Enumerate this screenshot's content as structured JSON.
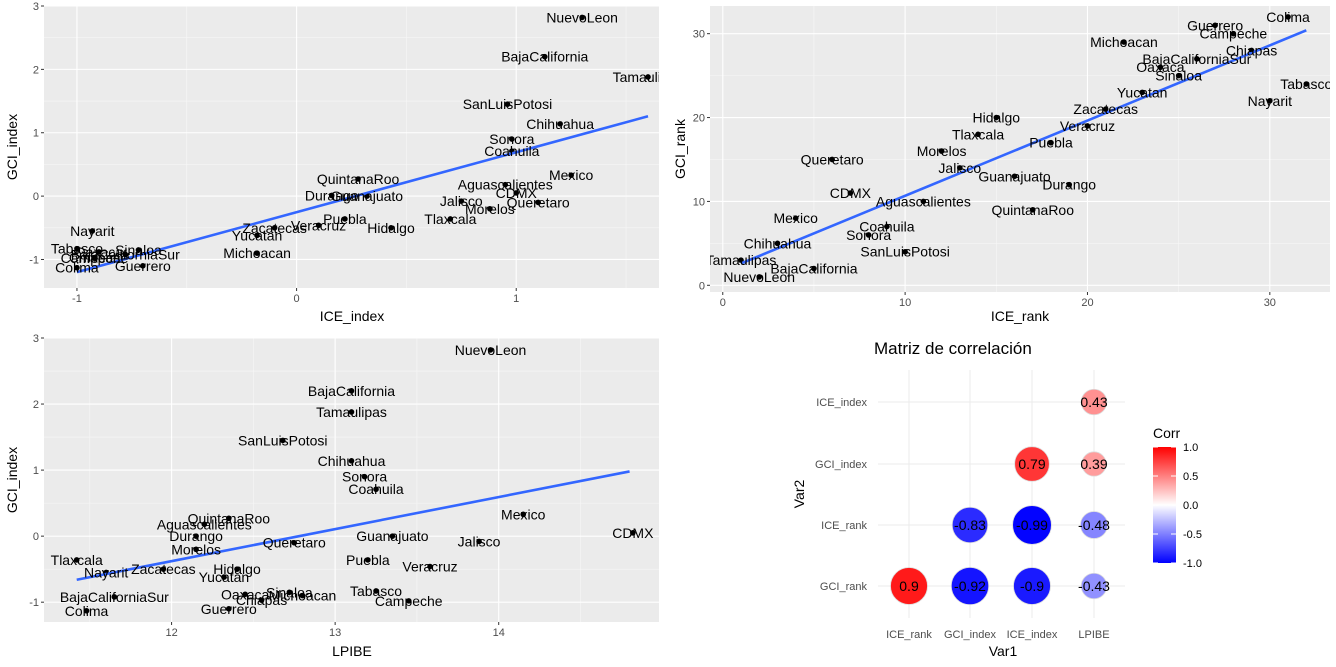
{
  "chart_data": [
    {
      "type": "scatter",
      "title": "",
      "xlabel": "ICE_index",
      "ylabel": "GCI_index",
      "xlim": [
        -1.15,
        1.65
      ],
      "ylim": [
        -1.45,
        3.0
      ],
      "xticks": [
        -1,
        0,
        1
      ],
      "yticks": [
        -1,
        0,
        1,
        2,
        3
      ],
      "grid": true,
      "trend_line": {
        "color": "#3366FF",
        "from": [
          -1.0,
          -1.2
        ],
        "to": [
          1.6,
          1.26
        ]
      },
      "points": [
        {
          "label": "NuevoLeon",
          "x": 1.3,
          "y": 2.82
        },
        {
          "label": "BajaCalifornia",
          "x": 1.13,
          "y": 2.2
        },
        {
          "label": "Tamaulipas",
          "x": 1.6,
          "y": 1.88
        },
        {
          "label": "SanLuisPotosi",
          "x": 0.96,
          "y": 1.45
        },
        {
          "label": "Chihuahua",
          "x": 1.2,
          "y": 1.14
        },
        {
          "label": "Sonora",
          "x": 0.98,
          "y": 0.9
        },
        {
          "label": "Coahuila",
          "x": 0.98,
          "y": 0.71
        },
        {
          "label": "Mexico",
          "x": 1.25,
          "y": 0.33
        },
        {
          "label": "QuintanaRoo",
          "x": 0.28,
          "y": 0.27
        },
        {
          "label": "Aguascalientes",
          "x": 0.95,
          "y": 0.18
        },
        {
          "label": "Durango",
          "x": 0.16,
          "y": 0.01
        },
        {
          "label": "Guanajuato",
          "x": 0.32,
          "y": 0.0
        },
        {
          "label": "CDMX",
          "x": 1.0,
          "y": 0.05
        },
        {
          "label": "Jalisco",
          "x": 0.75,
          "y": -0.08
        },
        {
          "label": "Queretaro",
          "x": 1.1,
          "y": -0.1
        },
        {
          "label": "Morelos",
          "x": 0.88,
          "y": -0.2
        },
        {
          "label": "Puebla",
          "x": 0.22,
          "y": -0.36
        },
        {
          "label": "Tlaxcala",
          "x": 0.7,
          "y": -0.36
        },
        {
          "label": "Zacatecas",
          "x": -0.1,
          "y": -0.5
        },
        {
          "label": "Veracruz",
          "x": 0.1,
          "y": -0.46
        },
        {
          "label": "Hidalgo",
          "x": 0.43,
          "y": -0.5
        },
        {
          "label": "Yucatan",
          "x": -0.18,
          "y": -0.62
        },
        {
          "label": "Nayarit",
          "x": -0.93,
          "y": -0.55
        },
        {
          "label": "Tabasco",
          "x": -1.0,
          "y": -0.83
        },
        {
          "label": "Sinaloa",
          "x": -0.72,
          "y": -0.85
        },
        {
          "label": "Oaxaca",
          "x": -0.9,
          "y": -0.88
        },
        {
          "label": "BajaCaliforniaSur",
          "x": -0.78,
          "y": -0.92
        },
        {
          "label": "Chiapas",
          "x": -0.92,
          "y": -0.97
        },
        {
          "label": "Campeche",
          "x": -0.92,
          "y": -0.98
        },
        {
          "label": "Michoacan",
          "x": -0.18,
          "y": -0.9
        },
        {
          "label": "Colima",
          "x": -1.0,
          "y": -1.13
        },
        {
          "label": "Guerrero",
          "x": -0.7,
          "y": -1.1
        }
      ]
    },
    {
      "type": "scatter",
      "title": "",
      "xlabel": "ICE_rank",
      "ylabel": "GCI_rank",
      "xlim": [
        -0.7,
        33.3
      ],
      "ylim": [
        -0.8,
        33.3
      ],
      "xticks": [
        0,
        10,
        20,
        30
      ],
      "yticks": [
        0,
        10,
        20,
        30
      ],
      "grid": true,
      "trend_line": {
        "color": "#3366FF",
        "from": [
          1,
          2.6
        ],
        "to": [
          32,
          30.4
        ]
      },
      "points": [
        {
          "label": "Colima",
          "x": 31,
          "y": 32
        },
        {
          "label": "Guerrero",
          "x": 27,
          "y": 31
        },
        {
          "label": "Campeche",
          "x": 28,
          "y": 30
        },
        {
          "label": "Michoacan",
          "x": 22,
          "y": 29
        },
        {
          "label": "Chiapas",
          "x": 29,
          "y": 28
        },
        {
          "label": "BajaCaliforniaSur",
          "x": 26,
          "y": 27
        },
        {
          "label": "Oaxaca",
          "x": 24,
          "y": 26
        },
        {
          "label": "Sinaloa",
          "x": 25,
          "y": 25
        },
        {
          "label": "Tabasco",
          "x": 32,
          "y": 24
        },
        {
          "label": "Yucatan",
          "x": 23,
          "y": 23
        },
        {
          "label": "Nayarit",
          "x": 30,
          "y": 22
        },
        {
          "label": "Zacatecas",
          "x": 21,
          "y": 21
        },
        {
          "label": "Hidalgo",
          "x": 15,
          "y": 20
        },
        {
          "label": "Veracruz",
          "x": 20,
          "y": 19
        },
        {
          "label": "Tlaxcala",
          "x": 14,
          "y": 18
        },
        {
          "label": "Puebla",
          "x": 18,
          "y": 17
        },
        {
          "label": "Morelos",
          "x": 12,
          "y": 16
        },
        {
          "label": "Queretaro",
          "x": 6,
          "y": 15
        },
        {
          "label": "Jalisco",
          "x": 13,
          "y": 14
        },
        {
          "label": "Guanajuato",
          "x": 16,
          "y": 13
        },
        {
          "label": "Durango",
          "x": 19,
          "y": 12
        },
        {
          "label": "CDMX",
          "x": 7,
          "y": 11
        },
        {
          "label": "Aguascalientes",
          "x": 11,
          "y": 10
        },
        {
          "label": "QuintanaRoo",
          "x": 17,
          "y": 9
        },
        {
          "label": "Mexico",
          "x": 4,
          "y": 8
        },
        {
          "label": "Coahuila",
          "x": 9,
          "y": 7
        },
        {
          "label": "Sonora",
          "x": 8,
          "y": 6
        },
        {
          "label": "Chihuahua",
          "x": 3,
          "y": 5
        },
        {
          "label": "SanLuisPotosi",
          "x": 10,
          "y": 4
        },
        {
          "label": "Tamaulipas",
          "x": 1,
          "y": 3
        },
        {
          "label": "BajaCalifornia",
          "x": 5,
          "y": 2
        },
        {
          "label": "NuevoLeon",
          "x": 2,
          "y": 1
        }
      ]
    },
    {
      "type": "scatter",
      "title": "",
      "xlabel": "LPIBE",
      "ylabel": "GCI_index",
      "xlim": [
        11.22,
        14.98
      ],
      "ylim": [
        -1.3,
        3.0
      ],
      "xticks": [
        12,
        13,
        14
      ],
      "yticks": [
        -1,
        0,
        1,
        2,
        3
      ],
      "grid": true,
      "trend_line": {
        "color": "#3366FF",
        "from": [
          11.42,
          -0.66
        ],
        "to": [
          14.8,
          0.98
        ]
      },
      "points": [
        {
          "label": "NuevoLeon",
          "x": 13.95,
          "y": 2.82
        },
        {
          "label": "BajaCalifornia",
          "x": 13.1,
          "y": 2.2
        },
        {
          "label": "Tamaulipas",
          "x": 13.1,
          "y": 1.88
        },
        {
          "label": "SanLuisPotosi",
          "x": 12.68,
          "y": 1.45
        },
        {
          "label": "Chihuahua",
          "x": 13.1,
          "y": 1.14
        },
        {
          "label": "Sonora",
          "x": 13.18,
          "y": 0.9
        },
        {
          "label": "Coahuila",
          "x": 13.25,
          "y": 0.71
        },
        {
          "label": "Mexico",
          "x": 14.15,
          "y": 0.33
        },
        {
          "label": "QuintanaRoo",
          "x": 12.35,
          "y": 0.27
        },
        {
          "label": "Aguascalientes",
          "x": 12.2,
          "y": 0.18
        },
        {
          "label": "CDMX",
          "x": 14.82,
          "y": 0.05
        },
        {
          "label": "Durango",
          "x": 12.15,
          "y": 0.0
        },
        {
          "label": "Guanajuato",
          "x": 13.35,
          "y": 0.0
        },
        {
          "label": "Queretaro",
          "x": 12.75,
          "y": -0.1
        },
        {
          "label": "Jalisco",
          "x": 13.88,
          "y": -0.08
        },
        {
          "label": "Morelos",
          "x": 12.15,
          "y": -0.2
        },
        {
          "label": "Puebla",
          "x": 13.2,
          "y": -0.36
        },
        {
          "label": "Tlaxcala",
          "x": 11.42,
          "y": -0.36
        },
        {
          "label": "Veracruz",
          "x": 13.58,
          "y": -0.46
        },
        {
          "label": "Hidalgo",
          "x": 12.4,
          "y": -0.5
        },
        {
          "label": "Zacatecas",
          "x": 11.95,
          "y": -0.5
        },
        {
          "label": "Nayarit",
          "x": 11.6,
          "y": -0.55
        },
        {
          "label": "Yucatan",
          "x": 12.32,
          "y": -0.62
        },
        {
          "label": "Tabasco",
          "x": 13.25,
          "y": -0.83
        },
        {
          "label": "Sinaloa",
          "x": 12.72,
          "y": -0.85
        },
        {
          "label": "Oaxaca",
          "x": 12.45,
          "y": -0.88
        },
        {
          "label": "BajaCaliforniaSur",
          "x": 11.65,
          "y": -0.92
        },
        {
          "label": "Chiapas",
          "x": 12.55,
          "y": -0.97
        },
        {
          "label": "Michoacan",
          "x": 12.8,
          "y": -0.9
        },
        {
          "label": "Campeche",
          "x": 13.45,
          "y": -0.98
        },
        {
          "label": "Colima",
          "x": 11.48,
          "y": -1.13
        },
        {
          "label": "Guerrero",
          "x": 12.35,
          "y": -1.1
        }
      ]
    },
    {
      "type": "heatmap",
      "title": "Matriz de correlación",
      "xlabel": "Var1",
      "ylabel": "Var2",
      "x_categories": [
        "ICE_rank",
        "GCI_index",
        "ICE_index",
        "LPIBE"
      ],
      "y_categories": [
        "GCI_rank",
        "ICE_rank",
        "GCI_index",
        "ICE_index"
      ],
      "legend": {
        "title": "Corr",
        "position": "right",
        "ticks": [
          "1.0",
          "0.5",
          "0.0",
          "-0.5",
          "-1.0"
        ],
        "low": "#0000FF",
        "mid": "#FFFFFF",
        "high": "#FF0000"
      },
      "cells": [
        {
          "x": "LPIBE",
          "y": "ICE_index",
          "value": 0.43,
          "label": "0.43"
        },
        {
          "x": "ICE_index",
          "y": "GCI_index",
          "value": 0.79,
          "label": "0.79"
        },
        {
          "x": "LPIBE",
          "y": "GCI_index",
          "value": 0.39,
          "label": "0.39"
        },
        {
          "x": "GCI_index",
          "y": "ICE_rank",
          "value": -0.83,
          "label": "-0.83"
        },
        {
          "x": "ICE_index",
          "y": "ICE_rank",
          "value": -0.99,
          "label": "-0.99"
        },
        {
          "x": "LPIBE",
          "y": "ICE_rank",
          "value": -0.48,
          "label": "-0.48"
        },
        {
          "x": "ICE_rank",
          "y": "GCI_rank",
          "value": 0.9,
          "label": "0.9"
        },
        {
          "x": "GCI_index",
          "y": "GCI_rank",
          "value": -0.92,
          "label": "-0.92"
        },
        {
          "x": "ICE_index",
          "y": "GCI_rank",
          "value": -0.9,
          "label": "-0.9"
        },
        {
          "x": "LPIBE",
          "y": "GCI_rank",
          "value": -0.43,
          "label": "-0.43"
        }
      ]
    }
  ]
}
